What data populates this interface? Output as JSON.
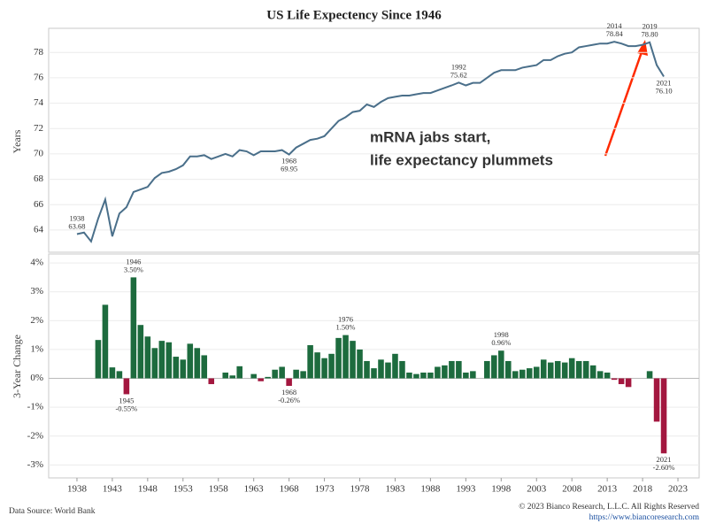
{
  "chart_data": [
    {
      "type": "line",
      "title": "US Life Expectency Since 1946",
      "ylabel": "Years",
      "color": "#4a6f8a",
      "x": [
        1938,
        1939,
        1940,
        1941,
        1942,
        1943,
        1944,
        1945,
        1946,
        1947,
        1948,
        1949,
        1950,
        1951,
        1952,
        1953,
        1954,
        1955,
        1956,
        1957,
        1958,
        1959,
        1960,
        1961,
        1962,
        1963,
        1964,
        1965,
        1966,
        1967,
        1968,
        1969,
        1970,
        1971,
        1972,
        1973,
        1974,
        1975,
        1976,
        1977,
        1978,
        1979,
        1980,
        1981,
        1982,
        1983,
        1984,
        1985,
        1986,
        1987,
        1988,
        1989,
        1990,
        1991,
        1992,
        1993,
        1994,
        1995,
        1996,
        1997,
        1998,
        1999,
        2000,
        2001,
        2002,
        2003,
        2004,
        2005,
        2006,
        2007,
        2008,
        2009,
        2010,
        2011,
        2012,
        2013,
        2014,
        2015,
        2016,
        2017,
        2018,
        2019,
        2020,
        2021
      ],
      "values": [
        63.68,
        63.8,
        63.1,
        64.9,
        66.4,
        63.5,
        65.3,
        65.8,
        67.0,
        67.2,
        67.4,
        68.1,
        68.5,
        68.6,
        68.8,
        69.1,
        69.8,
        69.8,
        69.9,
        69.6,
        69.8,
        70.0,
        69.8,
        70.3,
        70.2,
        69.9,
        70.2,
        70.2,
        70.2,
        70.3,
        69.95,
        70.5,
        70.8,
        71.1,
        71.2,
        71.4,
        72.0,
        72.6,
        72.9,
        73.3,
        73.4,
        73.9,
        73.7,
        74.1,
        74.4,
        74.5,
        74.6,
        74.6,
        74.7,
        74.8,
        74.8,
        75.0,
        75.2,
        75.4,
        75.62,
        75.4,
        75.6,
        75.6,
        76.0,
        76.4,
        76.6,
        76.6,
        76.6,
        76.8,
        76.9,
        77.0,
        77.4,
        77.4,
        77.7,
        77.9,
        78.0,
        78.4,
        78.5,
        78.6,
        78.7,
        78.7,
        78.84,
        78.7,
        78.5,
        78.5,
        78.6,
        78.8,
        77.0,
        76.1
      ],
      "value_labels": [
        "63.68",
        null,
        null,
        null,
        null,
        null,
        null,
        null,
        null,
        null,
        null,
        null,
        null,
        null,
        null,
        null,
        null,
        null,
        null,
        null,
        null,
        null,
        null,
        null,
        null,
        null,
        null,
        null,
        null,
        null,
        "69.95",
        null,
        null,
        null,
        null,
        null,
        null,
        null,
        null,
        null,
        null,
        null,
        null,
        null,
        null,
        null,
        null,
        null,
        null,
        null,
        null,
        null,
        null,
        null,
        "75.62",
        null,
        null,
        null,
        null,
        null,
        null,
        null,
        null,
        null,
        null,
        null,
        null,
        null,
        null,
        null,
        null,
        null,
        null,
        null,
        null,
        null,
        "78.84",
        null,
        null,
        null,
        null,
        "78.80",
        null,
        "76.10"
      ],
      "xlim": [
        1934,
        2026
      ],
      "ylim": [
        62.25,
        79.9
      ],
      "yticks": [
        64,
        66,
        68,
        70,
        72,
        74,
        76,
        78
      ],
      "grid": true,
      "annotation": {
        "lines": [
          "mRNA jabs start,",
          "life expectancy plummets"
        ],
        "color": "#ff2a00"
      }
    },
    {
      "type": "bar",
      "ylabel": "3-Year Change",
      "positive_color": "#1d6b3e",
      "negative_color": "#a3173f",
      "x": [
        1941,
        1942,
        1943,
        1944,
        1945,
        1946,
        1947,
        1948,
        1949,
        1950,
        1951,
        1952,
        1953,
        1954,
        1955,
        1956,
        1957,
        1958,
        1959,
        1960,
        1961,
        1962,
        1963,
        1964,
        1965,
        1966,
        1967,
        1968,
        1969,
        1970,
        1971,
        1972,
        1973,
        1974,
        1975,
        1976,
        1977,
        1978,
        1979,
        1980,
        1981,
        1982,
        1983,
        1984,
        1985,
        1986,
        1987,
        1988,
        1989,
        1990,
        1991,
        1992,
        1993,
        1994,
        1995,
        1996,
        1997,
        1998,
        1999,
        2000,
        2001,
        2002,
        2003,
        2004,
        2005,
        2006,
        2007,
        2008,
        2009,
        2010,
        2011,
        2012,
        2013,
        2014,
        2015,
        2016,
        2017,
        2018,
        2019,
        2020,
        2021
      ],
      "values": [
        1.33,
        2.55,
        0.38,
        0.25,
        -0.55,
        3.5,
        1.85,
        1.45,
        1.05,
        1.3,
        1.25,
        0.75,
        0.65,
        1.2,
        1.05,
        0.8,
        -0.2,
        0,
        0.2,
        0.1,
        0.42,
        0,
        0.15,
        -0.1,
        0.05,
        0.3,
        0.4,
        -0.26,
        0.3,
        0.25,
        1.15,
        0.9,
        0.7,
        0.85,
        1.4,
        1.5,
        1.3,
        1.0,
        0.6,
        0.35,
        0.65,
        0.55,
        0.85,
        0.6,
        0.2,
        0.15,
        0.2,
        0.2,
        0.4,
        0.45,
        0.6,
        0.6,
        0.2,
        0.25,
        0,
        0.6,
        0.8,
        0.96,
        0.6,
        0.25,
        0.3,
        0.35,
        0.4,
        0.65,
        0.55,
        0.6,
        0.55,
        0.7,
        0.6,
        0.6,
        0.45,
        0.25,
        0.2,
        -0.05,
        -0.2,
        -0.3,
        0,
        0,
        0.25,
        -1.5,
        -2.6
      ],
      "value_labels": [
        null,
        null,
        null,
        null,
        "-0.55%",
        "3.50%",
        null,
        null,
        null,
        null,
        null,
        null,
        null,
        null,
        null,
        null,
        null,
        null,
        null,
        null,
        null,
        null,
        null,
        null,
        null,
        null,
        null,
        "-0.26%",
        null,
        null,
        null,
        null,
        null,
        null,
        null,
        "1.50%",
        null,
        null,
        null,
        null,
        null,
        null,
        null,
        null,
        null,
        null,
        null,
        null,
        null,
        null,
        null,
        null,
        null,
        null,
        null,
        null,
        null,
        "0.96%",
        null,
        null,
        null,
        null,
        null,
        null,
        null,
        null,
        null,
        null,
        null,
        null,
        null,
        null,
        null,
        null,
        null,
        null,
        null,
        null,
        null,
        null,
        "-2.60%"
      ],
      "xlim": [
        1934,
        2026
      ],
      "xticks": [
        1938,
        1943,
        1948,
        1953,
        1958,
        1963,
        1968,
        1973,
        1978,
        1983,
        1988,
        1993,
        1998,
        2003,
        2008,
        2013,
        2018,
        2023
      ],
      "ylim": [
        -3.45,
        4.31
      ],
      "yticks": [
        {
          "value": 4,
          "label": "4%"
        },
        {
          "value": 3,
          "label": "3%"
        },
        {
          "value": 2,
          "label": "2%"
        },
        {
          "value": 1,
          "label": "1%"
        },
        {
          "value": 0,
          "label": "0%"
        },
        {
          "value": -1,
          "label": "-1%"
        },
        {
          "value": -2,
          "label": "-2%"
        },
        {
          "value": -3,
          "label": "-3%"
        }
      ],
      "grid": true
    }
  ],
  "footer": {
    "source": "Data Source: World Bank",
    "copyright": "© 2023 Bianco Research, L.L.C. All Rights Reserved",
    "url": "https://www.biancoresearch.com"
  }
}
